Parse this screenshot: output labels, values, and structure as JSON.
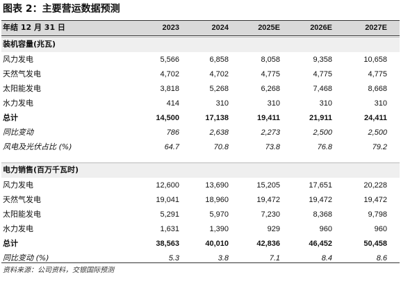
{
  "header": {
    "title": "图表 2：主要营运数据预测"
  },
  "table": {
    "columns": [
      "年结 12 月 31 日",
      "2023",
      "2024",
      "2025E",
      "2026E",
      "2027E"
    ],
    "sections": [
      {
        "name": "装机容量(兆瓦)",
        "rows": [
          {
            "style": "normal",
            "cells": [
              "风力发电",
              "5,566",
              "6,858",
              "8,058",
              "9,358",
              "10,658"
            ]
          },
          {
            "style": "normal",
            "cells": [
              "天然气发电",
              "4,702",
              "4,702",
              "4,775",
              "4,775",
              "4,775"
            ]
          },
          {
            "style": "normal",
            "cells": [
              "太阳能发电",
              "3,818",
              "5,268",
              "6,268",
              "7,468",
              "8,668"
            ]
          },
          {
            "style": "normal",
            "cells": [
              "水力发电",
              "414",
              "310",
              "310",
              "310",
              "310"
            ]
          },
          {
            "style": "bold",
            "cells": [
              "总计",
              "14,500",
              "17,138",
              "19,411",
              "21,911",
              "24,411"
            ]
          },
          {
            "style": "italic",
            "cells": [
              "同比变动",
              "786",
              "2,638",
              "2,273",
              "2,500",
              "2,500"
            ]
          },
          {
            "style": "italic",
            "cells": [
              "风电及光伏占比 (%)",
              "64.7",
              "70.8",
              "73.8",
              "76.8",
              "79.2"
            ]
          }
        ]
      },
      {
        "name": "电力销售(百万千瓦时)",
        "rows": [
          {
            "style": "normal",
            "cells": [
              "风力发电",
              "12,600",
              "13,690",
              "15,205",
              "17,651",
              "20,228"
            ]
          },
          {
            "style": "normal",
            "cells": [
              "天然气发电",
              "19,041",
              "18,960",
              "19,472",
              "19,472",
              "19,472"
            ]
          },
          {
            "style": "normal",
            "cells": [
              "太阳能发电",
              "5,291",
              "5,970",
              "7,230",
              "8,368",
              "9,798"
            ]
          },
          {
            "style": "normal",
            "cells": [
              "水力发电",
              "1,631",
              "1,390",
              "929",
              "960",
              "960"
            ]
          },
          {
            "style": "bold",
            "cells": [
              "总计",
              "38,563",
              "40,010",
              "42,836",
              "46,452",
              "50,458"
            ]
          },
          {
            "style": "italic",
            "cells": [
              "同比变动 (%)",
              "5.3",
              "3.8",
              "7.1",
              "8.4",
              "8.6"
            ]
          }
        ]
      }
    ]
  },
  "footer": {
    "source": "资料来源：公司资料，交银国际预测"
  }
}
